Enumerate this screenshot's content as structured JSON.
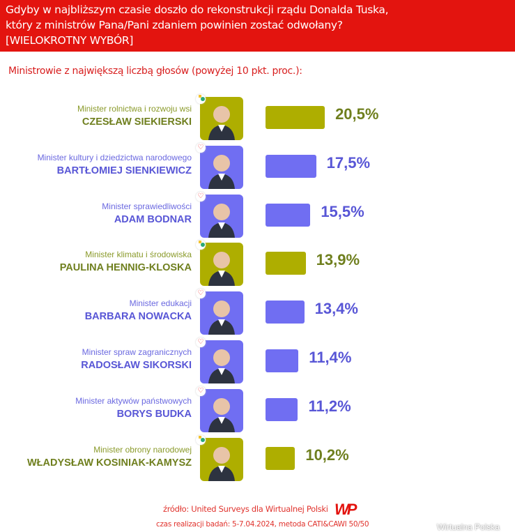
{
  "header": {
    "lines": [
      "Gdyby w najbliższym czasie doszło do rekonstrukcji rządu Donalda Tuska,",
      "który z ministrów Pana/Pani zdaniem powinien zostać odwołany?",
      "[WIELOKROTNY WYBÓR]"
    ]
  },
  "subtitle": "Ministrowie z największą liczbą głosów (powyżej 10 pkt. proc.):",
  "colors": {
    "olive": "#aeae00",
    "olive_text": "#6f7f1e",
    "purple": "#706ef2",
    "purple_text": "#5856d6",
    "header_red": "#e3140f"
  },
  "chart_data": {
    "type": "bar",
    "orientation": "horizontal",
    "unit": "%",
    "categories": [
      "Minister rolnictwa i rozwoju wsi — CZESŁAW SIEKIERSKI",
      "Minister kultury i dziedzictwa narodowego — BARTŁOMIEJ SIENKIEWICZ",
      "Minister sprawiedliwości — ADAM BODNAR",
      "Minister klimatu i środowiska — PAULINA HENNIG-KLOSKA",
      "Minister edukacji — BARBARA NOWACKA",
      "Minister spraw zagranicznych — RADOSŁAW SIKORSKI",
      "Minister aktywów państwowych — BORYS BUDKA",
      "Minister obrony narodowej — WŁADYSŁAW KOSINIAK-KAMYSZ"
    ],
    "values": [
      20.5,
      17.5,
      15.5,
      13.9,
      13.4,
      11.4,
      11.2,
      10.2
    ],
    "rows": [
      {
        "role": "Minister rolnictwa i rozwoju wsi",
        "name": "CZESŁAW SIEKIERSKI",
        "value": 20.5,
        "label": "20,5%",
        "party": "olive",
        "party_icon": "trzecia-droga-icon"
      },
      {
        "role": "Minister kultury i dziedzictwa narodowego",
        "name": "BARTŁOMIEJ SIENKIEWICZ",
        "value": 17.5,
        "label": "17,5%",
        "party": "purple",
        "party_icon": "heart-icon"
      },
      {
        "role": "Minister sprawiedliwości",
        "name": "ADAM BODNAR",
        "value": 15.5,
        "label": "15,5%",
        "party": "purple",
        "party_icon": "heart-icon"
      },
      {
        "role": "Minister klimatu i środowiska",
        "name": "PAULINA HENNIG-KLOSKA",
        "value": 13.9,
        "label": "13,9%",
        "party": "olive",
        "party_icon": "trzecia-droga-icon"
      },
      {
        "role": "Minister edukacji",
        "name": "BARBARA NOWACKA",
        "value": 13.4,
        "label": "13,4%",
        "party": "purple",
        "party_icon": "heart-icon"
      },
      {
        "role": "Minister spraw zagranicznych",
        "name": "RADOSŁAW SIKORSKI",
        "value": 11.4,
        "label": "11,4%",
        "party": "purple",
        "party_icon": "heart-icon"
      },
      {
        "role": "Minister aktywów państwowych",
        "name": "BORYS BUDKA",
        "value": 11.2,
        "label": "11,2%",
        "party": "purple",
        "party_icon": "heart-icon"
      },
      {
        "role": "Minister obrony narodowej",
        "name": "WŁADYSŁAW KOSINIAK-KAMYSZ",
        "value": 10.2,
        "label": "10,2%",
        "party": "olive",
        "party_icon": "trzecia-droga-icon"
      }
    ]
  },
  "footer": {
    "source": "źródło: United Surveys dla Wirtualnej Polski",
    "method": "czas realizacji badań: 5-7.04.2024, metoda CATI&CAWI 50/50",
    "logo": "WP",
    "watermark": "Wirtualna Polska"
  }
}
